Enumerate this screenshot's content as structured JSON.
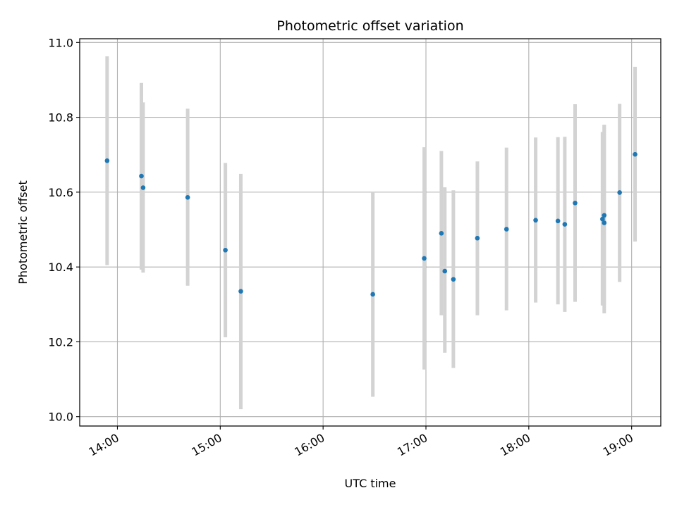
{
  "chart_data": {
    "type": "scatter",
    "title": "Photometric offset variation",
    "xlabel": "UTC time",
    "ylabel": "Photometric offset",
    "x_ticks": [
      "14:00",
      "15:00",
      "16:00",
      "17:00",
      "18:00",
      "19:00"
    ],
    "y_ticks": [
      "10.0",
      "10.2",
      "10.4",
      "10.6",
      "10.8",
      "11.0"
    ],
    "xlim": [
      "13:38",
      "19:17"
    ],
    "ylim": [
      9.975,
      11.01
    ],
    "grid": true,
    "colors": {
      "point": "#1f77b4",
      "errorbar": "#d3d3d3",
      "grid": "#b0b0b0"
    },
    "series": [
      {
        "points": [
          {
            "x": "13:54",
            "y": 10.684,
            "ylow": 10.405,
            "yhigh": 10.963
          },
          {
            "x": "14:14",
            "y": 10.643,
            "ylow": 10.393,
            "yhigh": 10.892
          },
          {
            "x": "14:15",
            "y": 10.612,
            "ylow": 10.385,
            "yhigh": 10.84
          },
          {
            "x": "14:41",
            "y": 10.586,
            "ylow": 10.35,
            "yhigh": 10.823
          },
          {
            "x": "15:03",
            "y": 10.445,
            "ylow": 10.212,
            "yhigh": 10.678
          },
          {
            "x": "15:12",
            "y": 10.335,
            "ylow": 10.02,
            "yhigh": 10.649
          },
          {
            "x": "16:29",
            "y": 10.327,
            "ylow": 10.053,
            "yhigh": 10.6
          },
          {
            "x": "16:59",
            "y": 10.423,
            "ylow": 10.126,
            "yhigh": 10.72
          },
          {
            "x": "17:09",
            "y": 10.49,
            "ylow": 10.271,
            "yhigh": 10.71
          },
          {
            "x": "17:11",
            "y": 10.389,
            "ylow": 10.171,
            "yhigh": 10.613
          },
          {
            "x": "17:16",
            "y": 10.367,
            "ylow": 10.13,
            "yhigh": 10.605
          },
          {
            "x": "17:30",
            "y": 10.477,
            "ylow": 10.271,
            "yhigh": 10.682
          },
          {
            "x": "17:47",
            "y": 10.501,
            "ylow": 10.284,
            "yhigh": 10.719
          },
          {
            "x": "18:04",
            "y": 10.525,
            "ylow": 10.305,
            "yhigh": 10.746
          },
          {
            "x": "18:17",
            "y": 10.523,
            "ylow": 10.3,
            "yhigh": 10.747
          },
          {
            "x": "18:21",
            "y": 10.514,
            "ylow": 10.28,
            "yhigh": 10.748
          },
          {
            "x": "18:27",
            "y": 10.571,
            "ylow": 10.307,
            "yhigh": 10.835
          },
          {
            "x": "18:43",
            "y": 10.528,
            "ylow": 10.297,
            "yhigh": 10.761
          },
          {
            "x": "18:44",
            "y": 10.518,
            "ylow": 10.276,
            "yhigh": 10.78
          },
          {
            "x": "18:44",
            "y": 10.538,
            "ylow": 10.296,
            "yhigh": 10.78
          },
          {
            "x": "18:53",
            "y": 10.599,
            "ylow": 10.36,
            "yhigh": 10.836
          },
          {
            "x": "19:02",
            "y": 10.701,
            "ylow": 10.468,
            "yhigh": 10.935
          }
        ]
      }
    ]
  }
}
